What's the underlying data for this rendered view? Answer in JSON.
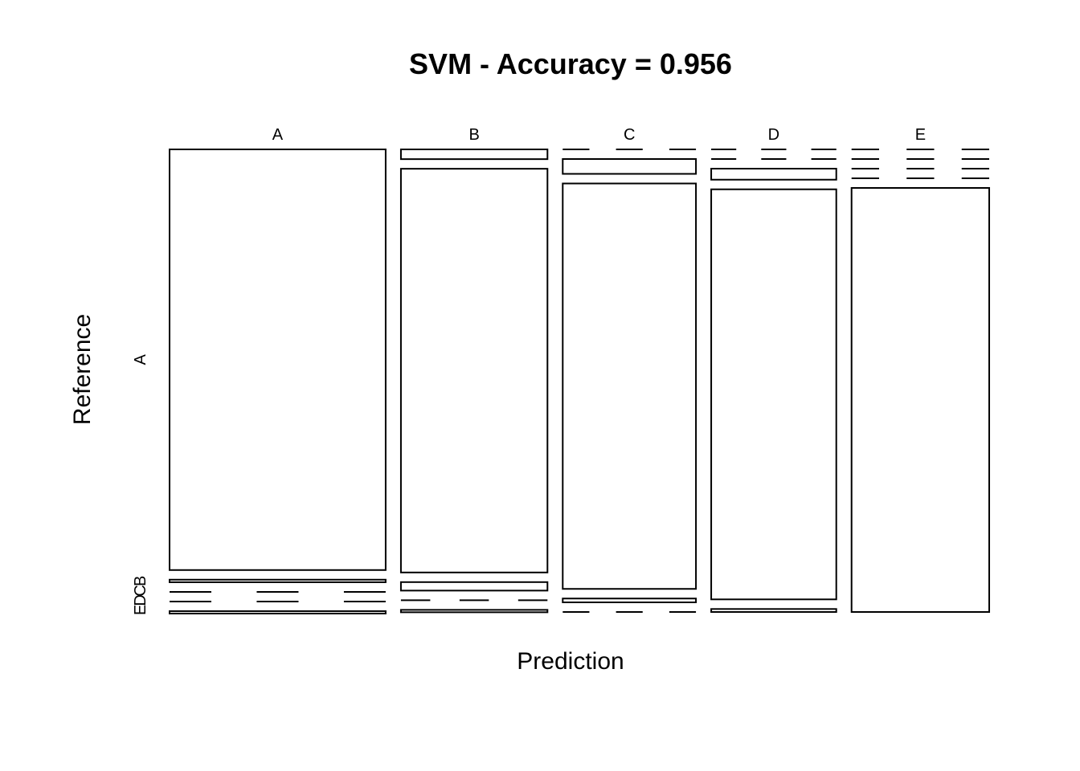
{
  "chart_data": {
    "type": "mosaic",
    "title": "SVM - Accuracy = 0.956",
    "xlabel": "Prediction",
    "ylabel": "Reference",
    "x_categories": [
      "A",
      "B",
      "C",
      "D",
      "E"
    ],
    "y_categories": [
      "A",
      "B",
      "C",
      "D",
      "E"
    ],
    "y_visible_ticks": [
      {
        "key": "A",
        "text": "A"
      },
      {
        "key": "B",
        "text": "B"
      },
      {
        "key": "C",
        "text": "C"
      },
      {
        "key": "D",
        "text": "D"
      },
      {
        "key": "E",
        "text": "E"
      }
    ],
    "column_proportions": [
      0.292,
      0.198,
      0.18,
      0.169,
      0.186
    ],
    "cell_proportions": {
      "A": [
        0.992,
        0.006,
        0.0,
        0.0,
        0.002
      ],
      "B": [
        0.023,
        0.952,
        0.02,
        0.0,
        0.005
      ],
      "C": [
        0.0,
        0.035,
        0.956,
        0.009,
        0.0
      ],
      "D": [
        0.0,
        0.0,
        0.026,
        0.967,
        0.007
      ],
      "E": [
        0.0,
        0.0,
        0.0,
        0.0,
        1.0
      ]
    },
    "grid": false,
    "legend": "none",
    "colors": {
      "fill": "#ffffff",
      "stroke": "#000000"
    }
  }
}
